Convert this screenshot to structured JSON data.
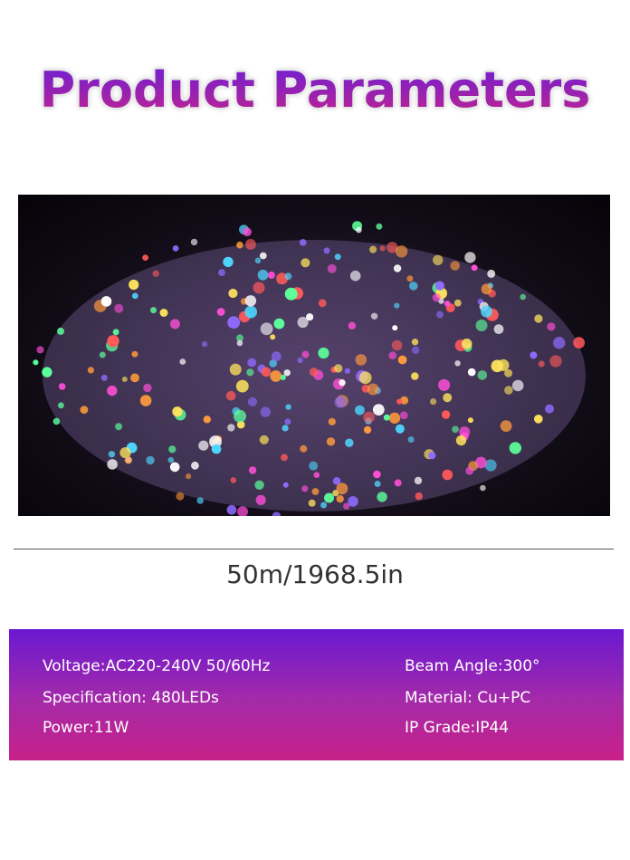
{
  "title": "Product Parameters",
  "photo": {
    "subject": "LED string lights",
    "led_colors": [
      "#ff4fd8",
      "#8f6bff",
      "#4fd6ff",
      "#5cff9a",
      "#ffe45c",
      "#ff5a5a",
      "#ffffff",
      "#ff9a3c"
    ]
  },
  "length": "50m/1968.5in",
  "specs": {
    "left": [
      "Voltage:AC220-240V 50/60Hz",
      "Specification: 480LEDs",
      "Power:11W"
    ],
    "right": [
      "Beam Angle:300°",
      "Material: Cu+PC",
      "IP Grade:IP44"
    ]
  },
  "colors": {
    "gradient_top": "#6a19d2",
    "gradient_bottom": "#c82088"
  }
}
